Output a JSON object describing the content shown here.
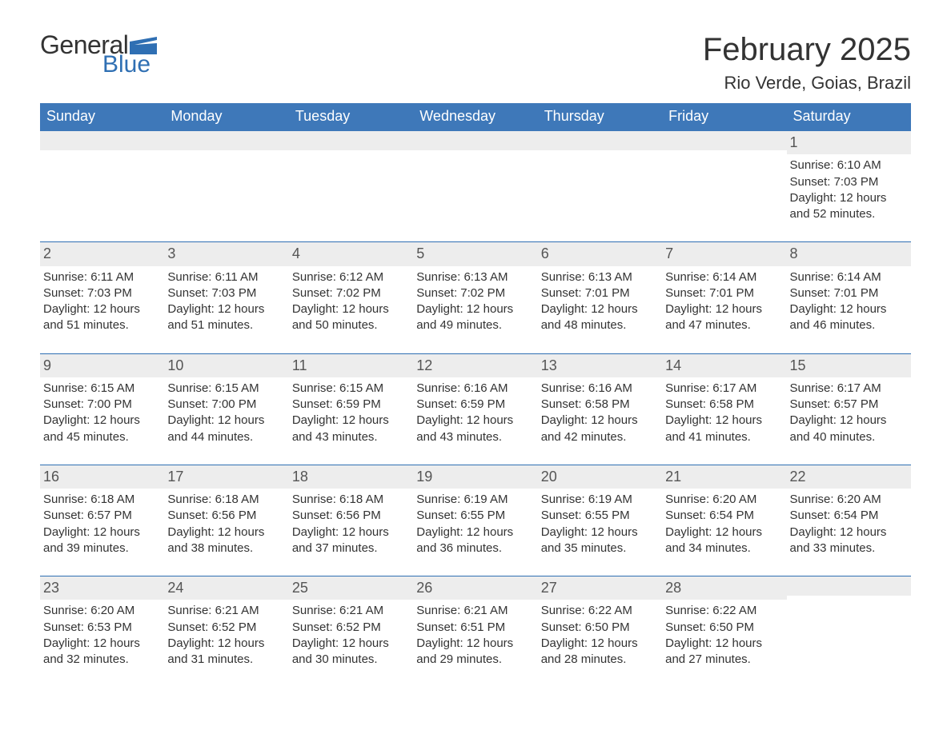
{
  "logo": {
    "text_general": "General",
    "text_blue": "Blue",
    "flag_color": "#2f6fb3"
  },
  "header": {
    "month_title": "February 2025",
    "location": "Rio Verde, Goias, Brazil"
  },
  "colors": {
    "header_bg": "#3e78b9",
    "header_text": "#ffffff",
    "row_divider": "#2f6fb3",
    "daynum_bg": "#ededed",
    "text": "#333333",
    "accent": "#2f6fb3"
  },
  "typography": {
    "month_title_size": 40,
    "location_size": 22,
    "weekday_size": 18,
    "daynum_size": 18,
    "body_size": 15
  },
  "calendar": {
    "weekdays": [
      "Sunday",
      "Monday",
      "Tuesday",
      "Wednesday",
      "Thursday",
      "Friday",
      "Saturday"
    ],
    "leading_blanks": 6,
    "days": [
      {
        "n": 1,
        "sunrise": "6:10 AM",
        "sunset": "7:03 PM",
        "daylight": "12 hours and 52 minutes."
      },
      {
        "n": 2,
        "sunrise": "6:11 AM",
        "sunset": "7:03 PM",
        "daylight": "12 hours and 51 minutes."
      },
      {
        "n": 3,
        "sunrise": "6:11 AM",
        "sunset": "7:03 PM",
        "daylight": "12 hours and 51 minutes."
      },
      {
        "n": 4,
        "sunrise": "6:12 AM",
        "sunset": "7:02 PM",
        "daylight": "12 hours and 50 minutes."
      },
      {
        "n": 5,
        "sunrise": "6:13 AM",
        "sunset": "7:02 PM",
        "daylight": "12 hours and 49 minutes."
      },
      {
        "n": 6,
        "sunrise": "6:13 AM",
        "sunset": "7:01 PM",
        "daylight": "12 hours and 48 minutes."
      },
      {
        "n": 7,
        "sunrise": "6:14 AM",
        "sunset": "7:01 PM",
        "daylight": "12 hours and 47 minutes."
      },
      {
        "n": 8,
        "sunrise": "6:14 AM",
        "sunset": "7:01 PM",
        "daylight": "12 hours and 46 minutes."
      },
      {
        "n": 9,
        "sunrise": "6:15 AM",
        "sunset": "7:00 PM",
        "daylight": "12 hours and 45 minutes."
      },
      {
        "n": 10,
        "sunrise": "6:15 AM",
        "sunset": "7:00 PM",
        "daylight": "12 hours and 44 minutes."
      },
      {
        "n": 11,
        "sunrise": "6:15 AM",
        "sunset": "6:59 PM",
        "daylight": "12 hours and 43 minutes."
      },
      {
        "n": 12,
        "sunrise": "6:16 AM",
        "sunset": "6:59 PM",
        "daylight": "12 hours and 43 minutes."
      },
      {
        "n": 13,
        "sunrise": "6:16 AM",
        "sunset": "6:58 PM",
        "daylight": "12 hours and 42 minutes."
      },
      {
        "n": 14,
        "sunrise": "6:17 AM",
        "sunset": "6:58 PM",
        "daylight": "12 hours and 41 minutes."
      },
      {
        "n": 15,
        "sunrise": "6:17 AM",
        "sunset": "6:57 PM",
        "daylight": "12 hours and 40 minutes."
      },
      {
        "n": 16,
        "sunrise": "6:18 AM",
        "sunset": "6:57 PM",
        "daylight": "12 hours and 39 minutes."
      },
      {
        "n": 17,
        "sunrise": "6:18 AM",
        "sunset": "6:56 PM",
        "daylight": "12 hours and 38 minutes."
      },
      {
        "n": 18,
        "sunrise": "6:18 AM",
        "sunset": "6:56 PM",
        "daylight": "12 hours and 37 minutes."
      },
      {
        "n": 19,
        "sunrise": "6:19 AM",
        "sunset": "6:55 PM",
        "daylight": "12 hours and 36 minutes."
      },
      {
        "n": 20,
        "sunrise": "6:19 AM",
        "sunset": "6:55 PM",
        "daylight": "12 hours and 35 minutes."
      },
      {
        "n": 21,
        "sunrise": "6:20 AM",
        "sunset": "6:54 PM",
        "daylight": "12 hours and 34 minutes."
      },
      {
        "n": 22,
        "sunrise": "6:20 AM",
        "sunset": "6:54 PM",
        "daylight": "12 hours and 33 minutes."
      },
      {
        "n": 23,
        "sunrise": "6:20 AM",
        "sunset": "6:53 PM",
        "daylight": "12 hours and 32 minutes."
      },
      {
        "n": 24,
        "sunrise": "6:21 AM",
        "sunset": "6:52 PM",
        "daylight": "12 hours and 31 minutes."
      },
      {
        "n": 25,
        "sunrise": "6:21 AM",
        "sunset": "6:52 PM",
        "daylight": "12 hours and 30 minutes."
      },
      {
        "n": 26,
        "sunrise": "6:21 AM",
        "sunset": "6:51 PM",
        "daylight": "12 hours and 29 minutes."
      },
      {
        "n": 27,
        "sunrise": "6:22 AM",
        "sunset": "6:50 PM",
        "daylight": "12 hours and 28 minutes."
      },
      {
        "n": 28,
        "sunrise": "6:22 AM",
        "sunset": "6:50 PM",
        "daylight": "12 hours and 27 minutes."
      }
    ],
    "labels": {
      "sunrise": "Sunrise: ",
      "sunset": "Sunset: ",
      "daylight": "Daylight: "
    }
  }
}
